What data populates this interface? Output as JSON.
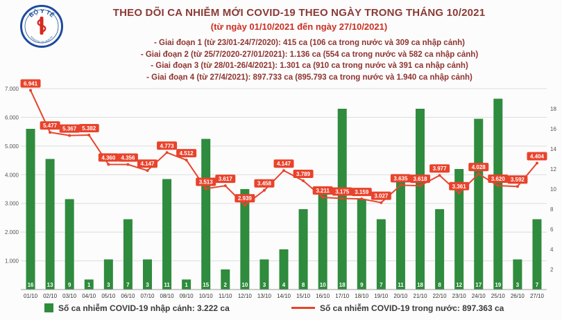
{
  "header": {
    "title": "THEO DÕI CA NHIỄM MỚI COVID-19 THEO NGÀY TRONG THÁNG 10/2021",
    "subtitle": "(từ ngày 01/10/2021 đến ngày 27/10/2021)",
    "annotations": [
      "- Giai đoạn 1 (từ 23/01-24/7/2020): 415 ca (106 ca trong nước và 309 ca nhập cảnh)",
      "- Giai đoạn 2 (từ 25/7/2020-27/01/2021): 1.136 ca (554 ca trong nước và 582 ca nhập cảnh)",
      "- Giai đoạn 3 (từ 28/01-26/4/2021): 1.301 ca (910 ca trong nước và 391 ca nhập cảnh)",
      "- Giai đoạn 4 (từ 27/4/2021): 897.733 ca (895.793 ca trong nước và 1.940 ca nhập cảnh)"
    ]
  },
  "logo": {
    "top": "BỘ Y TẾ",
    "bottom": "MINISTRY OF HEALTH"
  },
  "legend": {
    "bar_label": "Số ca nhiễm COVID-19 nhập cảnh: 3.222 ca",
    "line_label": "Số ca nhiễm COVID-19 trong nước: 897.363 ca"
  },
  "colors": {
    "title": "#8a3a35",
    "subtitle": "#cb2f23",
    "annotation": "#8f3430",
    "bar": "#2f8b3d",
    "line": "#e8432c",
    "grid": "#dcdcdc",
    "axis_text": "#555555",
    "logo_blue": "#1c4b9e",
    "logo_red": "#d22b20"
  },
  "chart_data": {
    "type": "bar+line",
    "title": "THEO DÕI CA NHIỄM MỚI COVID-19 THEO NGÀY TRONG THÁNG 10/2021",
    "subtitle": "(từ ngày 01/10/2021 đến ngày 27/10/2021)",
    "grid": true,
    "legend_position": "bottom",
    "categories": [
      "01/10",
      "02/10",
      "03/10",
      "04/10",
      "05/10",
      "06/10",
      "07/10",
      "08/10",
      "09/10",
      "10/10",
      "11/10",
      "12/10",
      "13/10",
      "14/10",
      "15/10",
      "16/10",
      "17/10",
      "18/10",
      "19/10",
      "20/10",
      "21/10",
      "22/10",
      "23/10",
      "24/10",
      "25/10",
      "26/10",
      "27/10"
    ],
    "series": [
      {
        "name": "Số ca nhiễm COVID-19 nhập cảnh",
        "chart": "bar",
        "axis": "right",
        "color": "#2f8b3d",
        "values": [
          16,
          13,
          9,
          1,
          3,
          7,
          3,
          11,
          1,
          15,
          2,
          10,
          3,
          4,
          8,
          10,
          18,
          9,
          7,
          11,
          18,
          8,
          12,
          17,
          19,
          3,
          7
        ]
      },
      {
        "name": "Số ca nhiễm COVID-19 trong nước",
        "chart": "line",
        "axis": "left",
        "color": "#e8432c",
        "values": [
          6941,
          5477,
          5367,
          5382,
          4360,
          4356,
          4147,
          4773,
          4512,
          3513,
          3617,
          2939,
          3458,
          4147,
          3789,
          3211,
          3175,
          3159,
          3027,
          3635,
          3618,
          3977,
          3361,
          4028,
          3620,
          3592,
          4404
        ]
      }
    ],
    "left_axis": {
      "min": 0,
      "max": 7000,
      "ticks": [
        1000,
        2000,
        3000,
        4000,
        5000,
        6000,
        7000
      ]
    },
    "right_axis": {
      "min": 0,
      "max": 20,
      "ticks": [
        2,
        4,
        6,
        8,
        10,
        12,
        14,
        16,
        18
      ]
    }
  }
}
